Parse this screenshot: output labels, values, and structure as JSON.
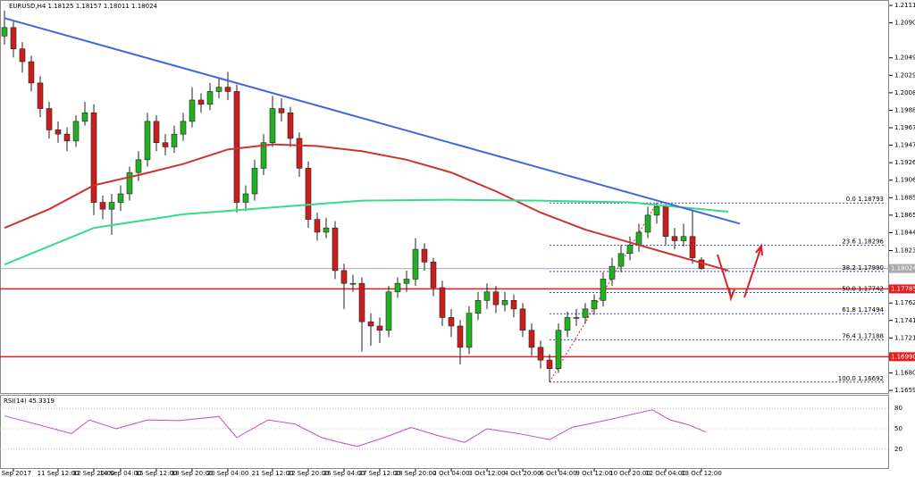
{
  "chart_data": {
    "type": "candlestick",
    "header": "EURUSD,H4  1.18125 1.18157 1.18011 1.18024",
    "rsi_header": "RSI(14) 45.3319",
    "categories": [
      null,
      "8 Sep 2017",
      null,
      null,
      null,
      null,
      "11 Sep 12:00",
      null,
      null,
      null,
      "12 Sep 20:00",
      null,
      null,
      "14 Sep 04:00",
      null,
      null,
      null,
      "15 Sep 12:00",
      null,
      null,
      null,
      "18 Sep 20:00",
      null,
      null,
      null,
      "20 Sep 04:00",
      null,
      null,
      null,
      null,
      "21 Sep 12:00",
      null,
      null,
      null,
      "22 Sep 20:00",
      null,
      null,
      null,
      "26 Sep 04:00",
      null,
      null,
      null,
      "27 Sep 12:00",
      null,
      null,
      null,
      "28 Sep 20:00",
      null,
      null,
      null,
      "2 Oct 04:00",
      null,
      null,
      null,
      "3 Oct 12:00",
      null,
      null,
      null,
      "4 Oct 20:00",
      null,
      null,
      null,
      "6 Oct 04:00",
      null,
      null,
      null,
      "9 Oct 12:00",
      null,
      null,
      null,
      "10 Oct 20:00",
      null,
      null,
      null,
      "12 Oct 04:00",
      null,
      null,
      null,
      "13 Oct 12:00"
    ],
    "open": [
      1.2075,
      1.2085,
      1.206,
      1.2045,
      1.202,
      1.199,
      1.1965,
      1.196,
      1.1952,
      1.1975,
      1.1985,
      1.188,
      1.1872,
      1.188,
      1.189,
      1.1915,
      1.193,
      1.1975,
      1.195,
      1.1945,
      1.196,
      1.1975,
      1.2,
      1.1995,
      1.201,
      1.2015,
      1.201,
      1.188,
      1.189,
      1.192,
      1.195,
      1.199,
      1.1985,
      1.1955,
      1.192,
      1.186,
      1.1845,
      1.185,
      1.18,
      1.1785,
      1.1785,
      1.174,
      1.1735,
      1.173,
      1.1775,
      1.1785,
      1.179,
      1.1825,
      1.181,
      1.178,
      1.1745,
      1.1735,
      1.171,
      1.175,
      1.1765,
      1.1775,
      1.176,
      1.1765,
      1.1755,
      1.173,
      1.171,
      1.1695,
      1.1685,
      1.173,
      1.1745,
      1.1745,
      1.1755,
      1.1765,
      1.179,
      1.1805,
      1.182,
      1.183,
      1.1845,
      1.1865,
      1.1875,
      1.184,
      1.1835,
      1.184,
      1.18125
    ],
    "high": [
      1.2105,
      1.2092,
      1.2068,
      1.2052,
      1.2028,
      1.1998,
      1.1975,
      1.1968,
      1.1982,
      1.1998,
      1.1995,
      1.1888,
      1.189,
      1.19,
      1.1922,
      1.194,
      1.1985,
      1.1982,
      1.196,
      1.197,
      1.1985,
      1.2015,
      1.2008,
      1.202,
      1.2025,
      1.2033,
      1.2018,
      1.19,
      1.193,
      1.196,
      1.2005,
      1.2002,
      1.1992,
      1.1962,
      1.1928,
      1.1868,
      1.1862,
      1.1858,
      1.1808,
      1.1795,
      1.1792,
      1.175,
      1.1745,
      1.1782,
      1.1792,
      1.18,
      1.1838,
      1.1832,
      1.1815,
      1.1788,
      1.1755,
      1.1742,
      1.1758,
      1.1775,
      1.1785,
      1.1782,
      1.1775,
      1.1772,
      1.1762,
      1.1738,
      1.1718,
      1.1702,
      1.1738,
      1.1752,
      1.1755,
      1.1762,
      1.1772,
      1.1798,
      1.1815,
      1.183,
      1.184,
      1.1855,
      1.1875,
      1.18793,
      1.1878,
      1.185,
      1.1855,
      1.187,
      1.18157
    ],
    "low": [
      1.2065,
      1.205,
      1.2032,
      1.201,
      1.198,
      1.1955,
      1.195,
      1.194,
      1.1945,
      1.197,
      1.1865,
      1.186,
      1.1842,
      1.187,
      1.1882,
      1.1905,
      1.1922,
      1.194,
      1.1935,
      1.1938,
      1.1952,
      1.1968,
      1.1985,
      1.1988,
      1.2002,
      1.2,
      1.1868,
      1.187,
      1.1882,
      1.1912,
      1.1945,
      1.1975,
      1.1945,
      1.191,
      1.185,
      1.1835,
      1.1838,
      1.179,
      1.1755,
      1.1775,
      1.1705,
      1.1712,
      1.1715,
      1.1722,
      1.1768,
      1.1775,
      1.1782,
      1.18,
      1.177,
      1.1735,
      1.1722,
      1.169,
      1.1702,
      1.1742,
      1.1755,
      1.175,
      1.1752,
      1.1745,
      1.1722,
      1.17,
      1.1685,
      1.16692,
      1.168,
      1.1722,
      1.1735,
      1.1738,
      1.1748,
      1.1758,
      1.1782,
      1.1798,
      1.1812,
      1.1822,
      1.1838,
      1.1855,
      1.183,
      1.1825,
      1.1828,
      1.1808,
      1.18011
    ],
    "close": [
      1.2085,
      1.206,
      1.2045,
      1.202,
      1.199,
      1.1965,
      1.196,
      1.1952,
      1.1975,
      1.1985,
      1.188,
      1.1872,
      1.188,
      1.189,
      1.1915,
      1.193,
      1.1975,
      1.195,
      1.1945,
      1.196,
      1.1975,
      1.2,
      1.1995,
      1.201,
      1.2015,
      1.201,
      1.188,
      1.189,
      1.192,
      1.195,
      1.199,
      1.1985,
      1.1955,
      1.192,
      1.186,
      1.1845,
      1.185,
      1.18,
      1.1785,
      1.1785,
      1.174,
      1.1735,
      1.173,
      1.1775,
      1.1785,
      1.179,
      1.1825,
      1.181,
      1.178,
      1.1745,
      1.1735,
      1.171,
      1.175,
      1.1765,
      1.1775,
      1.176,
      1.1765,
      1.1755,
      1.173,
      1.171,
      1.1695,
      1.1685,
      1.173,
      1.1745,
      1.1745,
      1.1755,
      1.1765,
      1.179,
      1.1805,
      1.182,
      1.183,
      1.1845,
      1.1865,
      1.1875,
      1.184,
      1.1835,
      1.184,
      1.1815,
      1.18024
    ],
    "up_color": "#22b022",
    "down_color": "#c81e1e",
    "ylim": [
      1.16564,
      1.21173
    ],
    "yticks": [
      {
        "value": 1.2111,
        "label": "1.21110"
      },
      {
        "value": 1.20905,
        "label": "1.20905"
      },
      {
        "value": 1.20495,
        "label": "1.20495"
      },
      {
        "value": 1.2029,
        "label": "1.20290"
      },
      {
        "value": 1.20085,
        "label": "1.20085"
      },
      {
        "value": 1.1988,
        "label": "1.19880"
      },
      {
        "value": 1.19675,
        "label": "1.19675"
      },
      {
        "value": 1.1947,
        "label": "1.19470"
      },
      {
        "value": 1.19265,
        "label": "1.19265"
      },
      {
        "value": 1.1906,
        "label": "1.19060"
      },
      {
        "value": 1.18855,
        "label": "1.18855"
      },
      {
        "value": 1.1865,
        "label": "1.18650"
      },
      {
        "value": 1.18445,
        "label": "1.18445"
      },
      {
        "value": 1.18235,
        "label": "1.18235"
      },
      {
        "value": 1.1762,
        "label": "1.17620"
      },
      {
        "value": 1.17415,
        "label": "1.17415"
      },
      {
        "value": 1.1721,
        "label": "1.17210"
      },
      {
        "value": 1.168,
        "label": "1.16800"
      },
      {
        "value": 1.16595,
        "label": "1.16595"
      }
    ],
    "overlays": [
      {
        "color": "#cc3333",
        "x": [
          0,
          5,
          10,
          15,
          20,
          25,
          30,
          35,
          40,
          45,
          50,
          55,
          60,
          65,
          70,
          75,
          78,
          81
        ],
        "values": [
          1.185,
          1.1872,
          1.19,
          1.1912,
          1.1925,
          1.1942,
          1.1948,
          1.1946,
          1.194,
          1.193,
          1.1915,
          1.1893,
          1.1868,
          1.1848,
          1.1833,
          1.1818,
          1.1809,
          1.18
        ]
      },
      {
        "color": "#33dd88",
        "x": [
          0,
          10,
          20,
          30,
          40,
          50,
          60,
          70,
          78,
          81
        ],
        "values": [
          1.1807,
          1.185,
          1.1866,
          1.1874,
          1.1882,
          1.1883,
          1.1882,
          1.188,
          1.1872,
          1.1869
        ]
      },
      {
        "color": "#4466dd",
        "x": [
          0,
          82.3
        ],
        "values": [
          1.2096,
          1.1855
        ]
      }
    ],
    "hlines": [
      {
        "value": 1.17785,
        "label": "1.17785",
        "color": "#e02020"
      },
      {
        "value": 1.1699,
        "label": "1.16990",
        "color": "#e02020"
      },
      {
        "value": 1.18024,
        "label": "1.18024",
        "color": "#aaaaaa"
      }
    ],
    "fib": {
      "start": 61,
      "color": "#3344cc",
      "levels": [
        {
          "value": 1.18793,
          "label": "0.0  1.18793"
        },
        {
          "value": 1.18296,
          "label": "23.6  1.18296"
        },
        {
          "value": 1.1799,
          "label": "38.2  1.17990"
        },
        {
          "value": 1.17742,
          "label": "50.0  1.17742"
        },
        {
          "value": 1.17494,
          "label": "61.8  1.17494"
        },
        {
          "value": 1.17188,
          "label": "76.4  1.17188"
        },
        {
          "value": 1.16692,
          "label": "100.0  1.16692"
        }
      ]
    },
    "rsi": {
      "color": "#cc44cc",
      "ylim": [
        0,
        100
      ],
      "yticks": [
        80,
        50,
        20
      ],
      "x": [
        0,
        3.5,
        7.5,
        9.5,
        12.5,
        16,
        19.5,
        24,
        26,
        29.5,
        32.5,
        35.5,
        37.5,
        39.5,
        42.5,
        45.5,
        48.5,
        51.5,
        54,
        57.5,
        61,
        63.5,
        67.5,
        69.5,
        72.5,
        74.5,
        76.5,
        78.5
      ],
      "values": [
        69,
        57,
        43,
        63,
        50,
        63,
        62,
        68,
        37,
        63,
        57,
        37,
        30,
        24,
        37,
        52,
        40,
        30,
        50,
        43,
        34,
        52,
        63,
        69,
        78,
        63,
        56,
        45.3319
      ]
    }
  }
}
